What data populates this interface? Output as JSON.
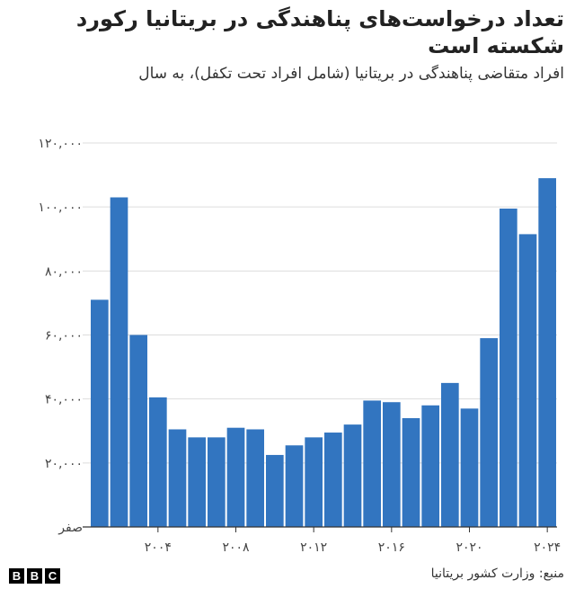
{
  "title": "تعداد درخواست‌های پناهندگی در بریتانیا رکورد شکسته است",
  "subtitle": "افراد متقاضی پناهندگی در بریتانیا (شامل افراد تحت تکفل)، به سال",
  "source": "منبع: وزارت کشور بریتانیا",
  "logo": [
    "B",
    "B",
    "C"
  ],
  "colors": {
    "bar": "#3275c0",
    "grid": "#dddddd",
    "axis": "#333333"
  },
  "chart_data": {
    "type": "bar",
    "title": "تعداد درخواست‌های پناهندگی در بریتانیا رکورد شکسته است",
    "xlabel": "",
    "ylabel": "",
    "categories": [
      "2001",
      "2002",
      "2003",
      "2004",
      "2005",
      "2006",
      "2007",
      "2008",
      "2009",
      "2010",
      "2011",
      "2012",
      "2013",
      "2014",
      "2015",
      "2016",
      "2017",
      "2018",
      "2019",
      "2020",
      "2021",
      "2022",
      "2023",
      "2024"
    ],
    "values": [
      71000,
      103000,
      60000,
      40500,
      30500,
      28000,
      28000,
      31000,
      30500,
      22500,
      25500,
      28000,
      29500,
      32000,
      39500,
      39000,
      34000,
      38000,
      45000,
      37000,
      59000,
      99500,
      91500,
      109000
    ],
    "ylim": [
      0,
      120000
    ],
    "yticks": [
      0,
      20000,
      40000,
      60000,
      80000,
      100000,
      120000
    ],
    "ytick_labels": [
      "صفر",
      "۲۰,۰۰۰",
      "۴۰,۰۰۰",
      "۶۰,۰۰۰",
      "۸۰,۰۰۰",
      "۱۰۰,۰۰۰",
      "۱۲۰,۰۰۰"
    ],
    "xticks": [
      "2004",
      "2008",
      "2012",
      "2016",
      "2020",
      "2024"
    ],
    "xtick_labels": [
      "۲۰۰۴",
      "۲۰۰۸",
      "۲۰۱۲",
      "۲۰۱۶",
      "۲۰۲۰",
      "۲۰۲۴"
    ],
    "grid": true,
    "legend": "none"
  }
}
